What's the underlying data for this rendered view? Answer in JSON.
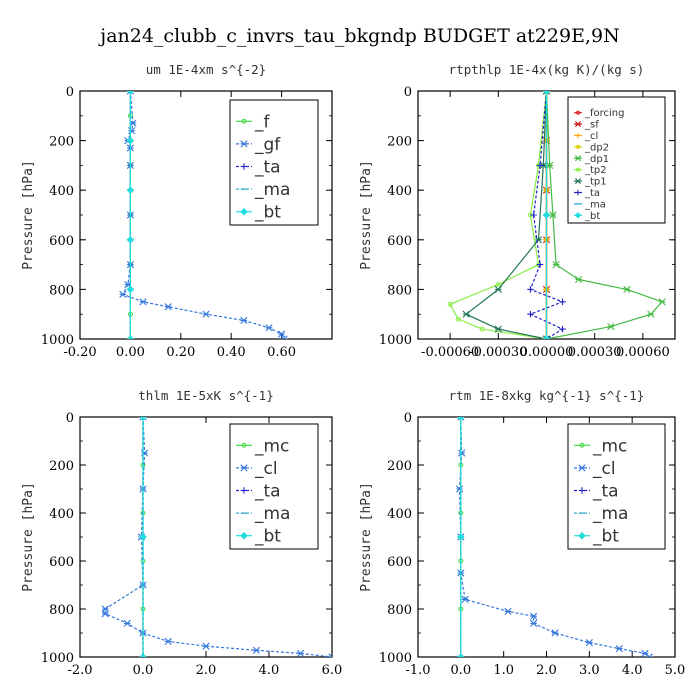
{
  "figure": {
    "title": "jan24_clubb_c_invrs_tau_bkgndp  BUDGET at229E,9N"
  },
  "chart_data": [
    {
      "type": "line",
      "title": "um  1E-4xm s^{-2}",
      "xlabel": "",
      "ylabel": "Pressure [hPa]",
      "xlim": [
        -0.2,
        0.8
      ],
      "ylim": [
        1000,
        0
      ],
      "xticks": [
        -0.2,
        0.0,
        0.2,
        0.4,
        0.6
      ],
      "xtick_labels": [
        "-0.20",
        "0.00",
        "0.20",
        "0.40",
        "0.60"
      ],
      "yticks": [
        0,
        200,
        400,
        600,
        800,
        1000
      ],
      "ytick_labels": [
        "0",
        "200",
        "400",
        "600",
        "800",
        "1000"
      ],
      "legend": {
        "position": "top-right",
        "font_size": 17
      },
      "series": [
        {
          "name": "_f",
          "color": "#44dd44",
          "marker": "o",
          "points": [
            [
              0,
              0
            ],
            [
              0,
              100
            ],
            [
              0,
              200
            ],
            [
              0,
              300
            ],
            [
              0,
              400
            ],
            [
              0,
              500
            ],
            [
              0,
              600
            ],
            [
              0,
              700
            ],
            [
              0,
              800
            ],
            [
              0,
              900
            ],
            [
              0,
              1000
            ]
          ]
        },
        {
          "name": "_gf",
          "color": "#3377dd",
          "marker": "x",
          "dashed": true,
          "points": [
            [
              0,
              0
            ],
            [
              0.01,
              130
            ],
            [
              0.005,
              160
            ],
            [
              -0.01,
              200
            ],
            [
              0,
              230
            ],
            [
              0,
              300
            ],
            [
              0,
              500
            ],
            [
              0,
              700
            ],
            [
              -0.01,
              780
            ],
            [
              -0.03,
              820
            ],
            [
              0.05,
              850
            ],
            [
              0.15,
              870
            ],
            [
              0.3,
              900
            ],
            [
              0.45,
              925
            ],
            [
              0.55,
              955
            ],
            [
              0.6,
              980
            ],
            [
              0.61,
              1000
            ]
          ]
        },
        {
          "name": "_ta",
          "color": "#2222cc",
          "marker": "+",
          "dashed": true,
          "points": [
            [
              0,
              0
            ],
            [
              0,
              200
            ],
            [
              0,
              400
            ],
            [
              0,
              600
            ],
            [
              0,
              800
            ],
            [
              0,
              1000
            ]
          ]
        },
        {
          "name": "_ma",
          "color": "#33aacc",
          "marker": "-",
          "dashed": true,
          "points": [
            [
              0,
              0
            ],
            [
              0,
              200
            ],
            [
              0,
              400
            ],
            [
              0,
              600
            ],
            [
              0,
              800
            ],
            [
              0,
              1000
            ]
          ]
        },
        {
          "name": "_bt",
          "color": "#22dddd",
          "marker": "d",
          "points": [
            [
              0,
              0
            ],
            [
              0,
              200
            ],
            [
              0,
              400
            ],
            [
              0,
              600
            ],
            [
              0,
              800
            ],
            [
              0,
              1000
            ]
          ]
        }
      ]
    },
    {
      "type": "line",
      "title": "rtpthlp  1E-4x(kg K)/(kg s)",
      "xlabel": "",
      "ylabel": "Pressure [hPa]",
      "xlim": [
        -0.0008,
        0.0008
      ],
      "ylim": [
        1000,
        0
      ],
      "xticks": [
        -0.0006,
        -0.0003,
        0.0,
        0.0003,
        0.0006
      ],
      "xtick_labels": [
        "-0.00060",
        "-0.00030",
        "0.00000",
        "0.00030",
        "0.00060"
      ],
      "yticks": [
        0,
        200,
        400,
        600,
        800,
        1000
      ],
      "ytick_labels": [
        "0",
        "200",
        "400",
        "600",
        "800",
        "1000"
      ],
      "legend": {
        "position": "top-right",
        "font_size": 10
      },
      "series": [
        {
          "name": "_forcing",
          "color": "#dd2222",
          "marker": "o",
          "points": [
            [
              0,
              0
            ],
            [
              0,
              200
            ],
            [
              0,
              400
            ],
            [
              0,
              600
            ],
            [
              0,
              800
            ],
            [
              0,
              1000
            ]
          ]
        },
        {
          "name": "_sf",
          "color": "#cc1111",
          "marker": "x",
          "points": [
            [
              0,
              0
            ],
            [
              0,
              200
            ],
            [
              0,
              400
            ],
            [
              0,
              600
            ],
            [
              0,
              800
            ],
            [
              0,
              1000
            ]
          ]
        },
        {
          "name": "_cl",
          "color": "#ffaa00",
          "marker": "+",
          "points": [
            [
              0,
              0
            ],
            [
              0,
              200
            ],
            [
              0,
              400
            ],
            [
              0,
              600
            ],
            [
              0,
              800
            ],
            [
              0,
              1000
            ]
          ]
        },
        {
          "name": "_dp2",
          "color": "#ddcc00",
          "marker": "o",
          "points": [
            [
              0,
              0
            ],
            [
              0,
              200
            ],
            [
              0,
              400
            ],
            [
              0,
              600
            ],
            [
              0,
              800
            ],
            [
              0,
              1000
            ]
          ]
        },
        {
          "name": "_dp1",
          "color": "#44bb44",
          "marker": "x",
          "points": [
            [
              0,
              0
            ],
            [
              2e-05,
              300
            ],
            [
              4e-05,
              500
            ],
            [
              6e-05,
              700
            ],
            [
              0.0002,
              760
            ],
            [
              0.0005,
              800
            ],
            [
              0.00072,
              850
            ],
            [
              0.00065,
              900
            ],
            [
              0.0004,
              950
            ],
            [
              0,
              1000
            ]
          ]
        },
        {
          "name": "_tp2",
          "color": "#88ee44",
          "marker": "o",
          "points": [
            [
              0,
              0
            ],
            [
              -5e-05,
              300
            ],
            [
              -0.0001,
              500
            ],
            [
              -5e-05,
              700
            ],
            [
              -0.0003,
              780
            ],
            [
              -0.0006,
              860
            ],
            [
              -0.00055,
              920
            ],
            [
              -0.0004,
              960
            ],
            [
              0,
              1000
            ]
          ]
        },
        {
          "name": "_tp1",
          "color": "#227755",
          "marker": "x",
          "points": [
            [
              0,
              0
            ],
            [
              -2e-05,
              300
            ],
            [
              -5e-05,
              600
            ],
            [
              -0.0003,
              800
            ],
            [
              -0.0005,
              900
            ],
            [
              -0.0003,
              960
            ],
            [
              0,
              1000
            ]
          ]
        },
        {
          "name": "_ta",
          "color": "#2222cc",
          "marker": "+",
          "dashed": true,
          "points": [
            [
              0,
              0
            ],
            [
              -4e-05,
              300
            ],
            [
              -8e-05,
              500
            ],
            [
              -4e-05,
              700
            ],
            [
              -0.0001,
              800
            ],
            [
              0.0001,
              850
            ],
            [
              -0.0001,
              900
            ],
            [
              0.0001,
              960
            ],
            [
              0,
              1000
            ]
          ]
        },
        {
          "name": "_ma",
          "color": "#33aacc",
          "marker": "-",
          "dashed": true,
          "points": [
            [
              0,
              0
            ],
            [
              0,
              500
            ],
            [
              0,
              1000
            ]
          ]
        },
        {
          "name": "_bt",
          "color": "#22dddd",
          "marker": "d",
          "points": [
            [
              0,
              0
            ],
            [
              0,
              500
            ],
            [
              0,
              1000
            ]
          ]
        }
      ]
    },
    {
      "type": "line",
      "title": "thlm  1E-5xK s^{-1}",
      "xlabel": "",
      "ylabel": "Pressure [hPa]",
      "xlim": [
        -2.0,
        6.0
      ],
      "ylim": [
        1000,
        0
      ],
      "xticks": [
        -2.0,
        0.0,
        2.0,
        4.0,
        6.0
      ],
      "xtick_labels": [
        "-2.0",
        "0.0",
        "2.0",
        "4.0",
        "6.0"
      ],
      "yticks": [
        0,
        200,
        400,
        600,
        800,
        1000
      ],
      "ytick_labels": [
        "0",
        "200",
        "400",
        "600",
        "800",
        "1000"
      ],
      "legend": {
        "position": "top-right",
        "font_size": 17
      },
      "series": [
        {
          "name": "_mc",
          "color": "#44dd44",
          "marker": "o",
          "points": [
            [
              0,
              0
            ],
            [
              0,
              200
            ],
            [
              0,
              400
            ],
            [
              0,
              600
            ],
            [
              0,
              800
            ],
            [
              0,
              1000
            ]
          ]
        },
        {
          "name": "_cl",
          "color": "#3377dd",
          "marker": "x",
          "dashed": true,
          "points": [
            [
              0,
              0
            ],
            [
              0.05,
              150
            ],
            [
              0,
              300
            ],
            [
              -0.05,
              500
            ],
            [
              0,
              700
            ],
            [
              -1.2,
              800
            ],
            [
              -1.2,
              820
            ],
            [
              -0.5,
              860
            ],
            [
              0,
              900
            ],
            [
              0.8,
              935
            ],
            [
              2,
              955
            ],
            [
              3.6,
              972
            ],
            [
              5,
              985
            ],
            [
              6,
              1000
            ]
          ]
        },
        {
          "name": "_ta",
          "color": "#2222cc",
          "marker": "+",
          "dashed": true,
          "points": [
            [
              0,
              0
            ],
            [
              0,
              500
            ],
            [
              0,
              1000
            ]
          ]
        },
        {
          "name": "_ma",
          "color": "#33aacc",
          "marker": "-",
          "dashed": true,
          "points": [
            [
              0,
              0
            ],
            [
              0,
              500
            ],
            [
              0,
              1000
            ]
          ]
        },
        {
          "name": "_bt",
          "color": "#22dddd",
          "marker": "d",
          "points": [
            [
              0,
              0
            ],
            [
              0,
              500
            ],
            [
              0,
              1000
            ]
          ]
        }
      ]
    },
    {
      "type": "line",
      "title": "rtm  1E-8xkg kg^{-1} s^{-1}",
      "xlabel": "",
      "ylabel": "Pressure [hPa]",
      "xlim": [
        -1.0,
        5.0
      ],
      "ylim": [
        1000,
        0
      ],
      "xticks": [
        -1.0,
        0.0,
        1.0,
        2.0,
        3.0,
        4.0,
        5.0
      ],
      "xtick_labels": [
        "-1.0",
        "0.0",
        "1.0",
        "2.0",
        "3.0",
        "4.0",
        "5.0"
      ],
      "yticks": [
        0,
        200,
        400,
        600,
        800,
        1000
      ],
      "ytick_labels": [
        "0",
        "200",
        "400",
        "600",
        "800",
        "1000"
      ],
      "legend": {
        "position": "top-right",
        "font_size": 17
      },
      "series": [
        {
          "name": "_mc",
          "color": "#44dd44",
          "marker": "o",
          "points": [
            [
              0,
              0
            ],
            [
              0,
              200
            ],
            [
              0,
              400
            ],
            [
              0,
              600
            ],
            [
              0,
              800
            ],
            [
              0,
              1000
            ]
          ]
        },
        {
          "name": "_cl",
          "color": "#3377dd",
          "marker": "x",
          "dashed": true,
          "points": [
            [
              0,
              0
            ],
            [
              0.02,
              150
            ],
            [
              -0.03,
              300
            ],
            [
              0,
              500
            ],
            [
              0,
              650
            ],
            [
              0.1,
              760
            ],
            [
              1.1,
              810
            ],
            [
              1.7,
              830
            ],
            [
              1.7,
              860
            ],
            [
              2.2,
              900
            ],
            [
              3,
              940
            ],
            [
              3.7,
              965
            ],
            [
              4.3,
              985
            ],
            [
              4.4,
              1000
            ]
          ]
        },
        {
          "name": "_ta",
          "color": "#2222cc",
          "marker": "+",
          "dashed": true,
          "points": [
            [
              0,
              0
            ],
            [
              0,
              500
            ],
            [
              0,
              1000
            ]
          ]
        },
        {
          "name": "_ma",
          "color": "#33aacc",
          "marker": "-",
          "dashed": true,
          "points": [
            [
              0,
              0
            ],
            [
              0,
              500
            ],
            [
              0,
              1000
            ]
          ]
        },
        {
          "name": "_bt",
          "color": "#22dddd",
          "marker": "d",
          "points": [
            [
              0,
              0
            ],
            [
              0,
              500
            ],
            [
              0,
              1000
            ]
          ]
        }
      ]
    }
  ]
}
